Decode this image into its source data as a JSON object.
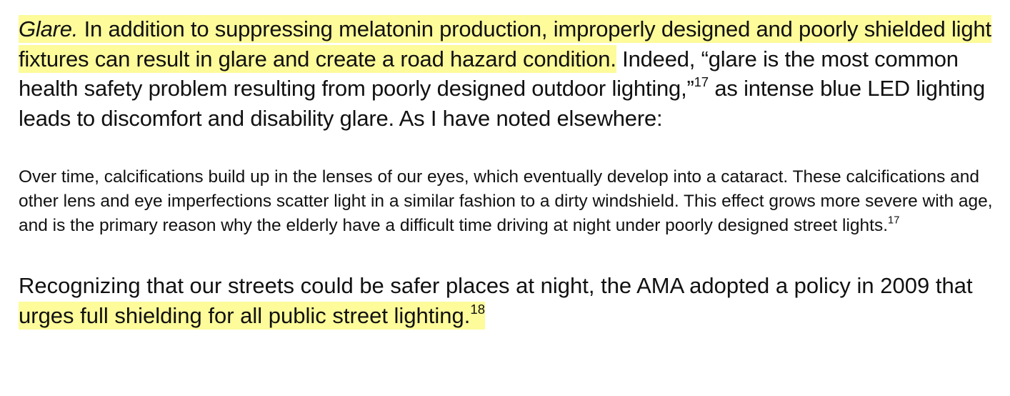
{
  "highlight_color": "#fdfb9a",
  "paragraph1": {
    "lead_italic": "Glare.",
    "highlighted_text": " In addition to suppressing melatonin production, improperly designed and poorly shielded light fixtures can result in glare and create a road hazard condition.",
    "text_before_note": " Indeed, “glare is the most common health safety problem resulting from poorly designed outdoor lighting,”",
    "footnote_ref": "17",
    "text_after_note": " as intense blue LED lighting leads to discomfort and disability glare. As I have noted elsewhere:"
  },
  "block_quote": {
    "text": "Over time, calcifications build up in the lenses of our eyes, which eventually develop into a cataract. These calcifications and other lens and eye imperfections scatter light in a similar fashion to a dirty windshield. This effect grows more severe with age, and is the primary reason why the elderly have a difficult time driving at night under poorly designed street lights.",
    "footnote_ref": "17"
  },
  "paragraph2": {
    "text_before": "Recognizing that our streets could be safer places at night, the AMA adopted a policy in 2009 that ",
    "highlighted_text": "urges full shielding for all public street lighting.",
    "footnote_ref": "18"
  }
}
